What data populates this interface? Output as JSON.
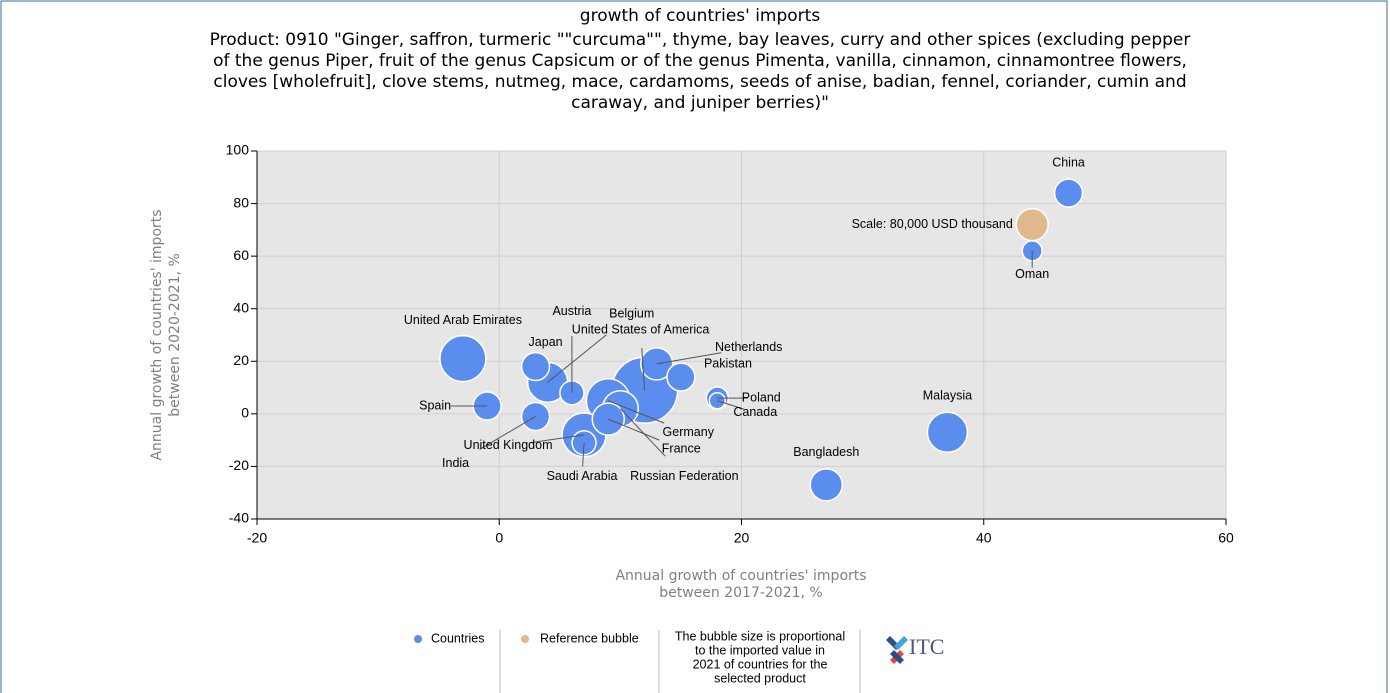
{
  "chart_data": {
    "type": "bubble",
    "title": "growth of countries' imports",
    "subtitle": [
      "Product: 0910 \"Ginger, saffron, turmeric \"\"curcuma\"\", thyme, bay leaves, curry and other spices (excluding pepper",
      "of the genus Piper, fruit of the genus Capsicum or of the genus Pimenta, vanilla, cinnamon, cinnamontree flowers,",
      "cloves [wholefruit], clove stems, nutmeg, mace, cardamoms, seeds of anise, badian, fennel, coriander, cumin and",
      "caraway, and juniper berries)\""
    ],
    "x_label": [
      "Annual growth of countries' imports",
      "between 2017-2021, %"
    ],
    "y_label": [
      "Annual growth of countries' imports",
      "between 2020-2021, %"
    ],
    "xlim": [
      -20,
      60
    ],
    "xticks": [
      -20,
      0,
      20,
      40,
      60
    ],
    "ylim": [
      -40,
      100
    ],
    "yticks": [
      -40,
      -20,
      0,
      20,
      40,
      60,
      80,
      100
    ],
    "grid": true,
    "series": [
      {
        "name": "Countries",
        "color": "#5b8def",
        "labels": [
          "China",
          "Oman",
          "Malaysia",
          "Bangladesh",
          "Poland",
          "Canada",
          "United Arab Emirates",
          "Spain",
          "Japan",
          "India",
          "Austria",
          "Belgium",
          "United States of America",
          "Netherlands",
          "Pakistan",
          "Germany",
          "France",
          "United Kingdom",
          "Saudi Arabia",
          "Russian Federation"
        ],
        "x": [
          47,
          44,
          37,
          27,
          18,
          18,
          -3,
          -1,
          3,
          3,
          6,
          4,
          12,
          13,
          15,
          9,
          9,
          7,
          7,
          10
        ],
        "values": [
          84,
          62,
          -7,
          -27,
          6,
          5,
          21,
          3,
          18,
          -1,
          8,
          12,
          9,
          19,
          14,
          5,
          -2,
          -8,
          -11,
          2
        ],
        "sizes": [
          61000,
          31000,
          125000,
          80000,
          38000,
          20000,
          165000,
          61000,
          61000,
          61000,
          45000,
          125000,
          340000,
          80000,
          61000,
          150000,
          80000,
          150000,
          45000,
          100000
        ]
      },
      {
        "name": "Reference bubble",
        "color": "#e0b98c",
        "labels": [
          "Scale: 80,000 USD thousand"
        ],
        "x": [
          44
        ],
        "values": [
          72
        ],
        "sizes": [
          80000
        ]
      }
    ],
    "note": [
      "The bubble size is proportional",
      "to the imported value in",
      "2021 of countries for the",
      "selected product"
    ],
    "logo": "ITC"
  }
}
